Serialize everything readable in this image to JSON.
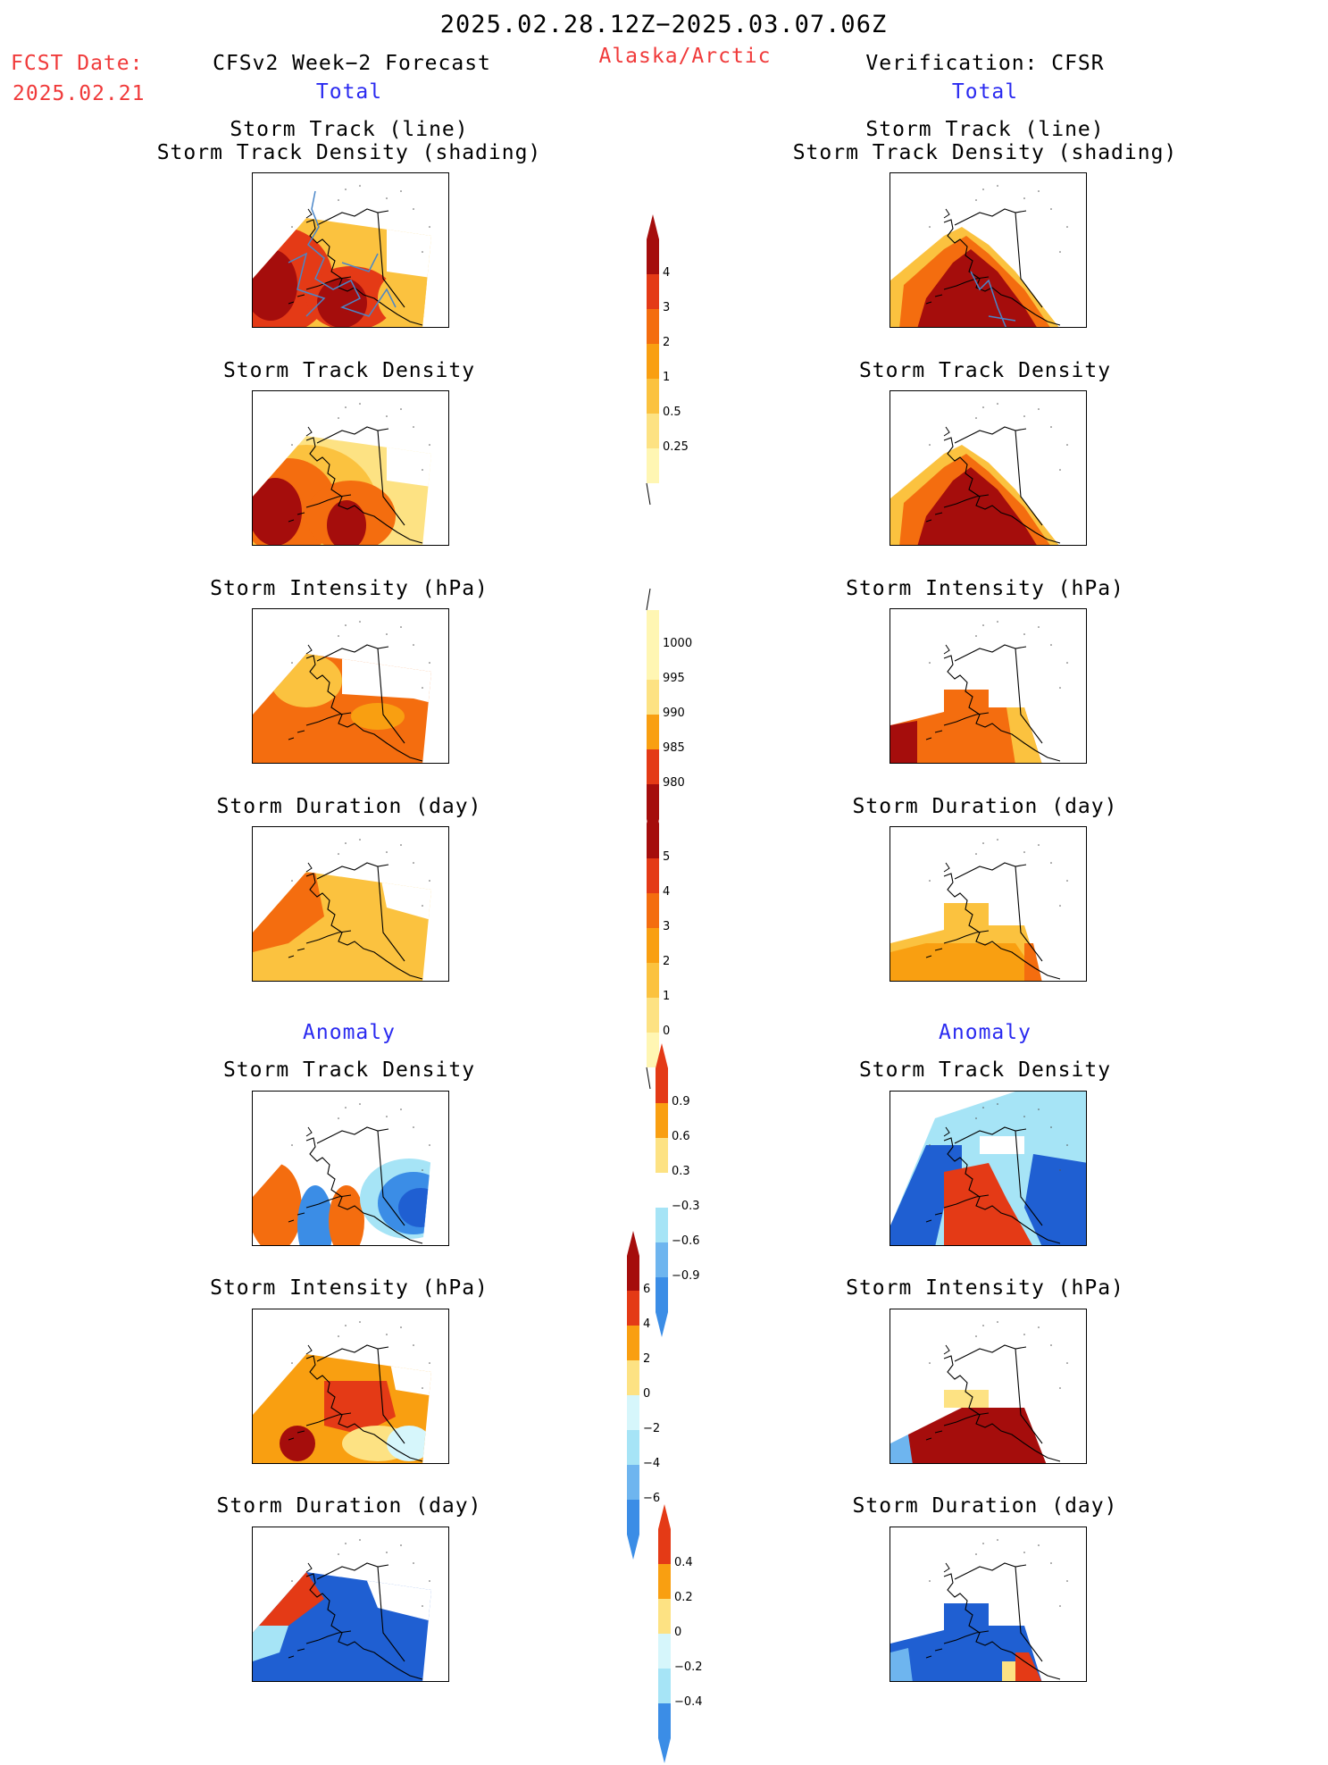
{
  "header": {
    "period": "2025.02.28.12Z−2025.03.07.06Z",
    "fcst_label": "FCST Date:",
    "fcst_date": "2025.02.21",
    "left_title": "CFSv2 Week−2 Forecast",
    "region": "Alaska/Arctic",
    "right_title": "Verification: CFSR",
    "left_total": "Total",
    "right_total": "Total"
  },
  "sections": {
    "anomaly_left": "Anomaly",
    "anomaly_right": "Anomaly"
  },
  "panels": {
    "track_line_1": "Storm Track (line)",
    "track_line_2": "Storm Track Density (shading)",
    "density": "Storm Track Density",
    "intensity": "Storm Intensity (hPa)",
    "duration": "Storm Duration (day)"
  },
  "colorbars": {
    "density_total": [
      "4",
      "3",
      "2",
      "1",
      "0.5",
      "0.25"
    ],
    "intensity_total": [
      "1000",
      "995",
      "990",
      "985",
      "980"
    ],
    "duration_total": [
      "5",
      "4",
      "3",
      "2",
      "1",
      "0"
    ],
    "density_anom": [
      "0.9",
      "0.6",
      "0.3",
      "−0.3",
      "−0.6",
      "−0.9"
    ],
    "intensity_anom": [
      "6",
      "4",
      "2",
      "0",
      "−2",
      "−4",
      "−6"
    ],
    "duration_anom": [
      "0.4",
      "0.2",
      "0",
      "−0.2",
      "−0.4"
    ]
  },
  "colors": {
    "warm": [
      "#fff6b3",
      "#fde283",
      "#fbc23f",
      "#f99f11",
      "#f46d0f",
      "#e43a16",
      "#a50d0c"
    ],
    "cool": [
      "#d6f6fb",
      "#a6e4f6",
      "#6eb5ef",
      "#3b8de6",
      "#1f5fd2"
    ],
    "track_line": "#4a86c8"
  }
}
